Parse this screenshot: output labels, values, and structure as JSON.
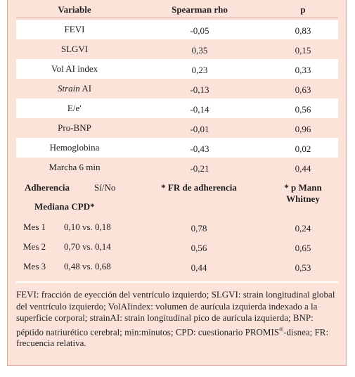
{
  "table": {
    "header": [
      "Variable",
      "Spearman rho",
      "p"
    ],
    "rows": [
      {
        "variable": "FEVI",
        "rho": "-0,05",
        "p": "0,83"
      },
      {
        "variable": "SLGVI",
        "rho": "0,35",
        "p": "0,15"
      },
      {
        "variable": "Vol AI index",
        "rho": "0,23",
        "p": "0,33"
      },
      {
        "variable_italic": "Strain",
        "variable": "AI",
        "rho": "-0,13",
        "p": "0,63"
      },
      {
        "variable": "E/e′",
        "rho": "-0,14",
        "p": "0,56"
      },
      {
        "variable": "Pro-BNP",
        "rho": "-0,01",
        "p": "0,96"
      },
      {
        "variable": "Hemoglobina",
        "rho": "-0,43",
        "p": "0,02"
      },
      {
        "variable": "Marcha 6 min",
        "rho": "-0,21",
        "p": "0,44"
      }
    ]
  },
  "adherence": {
    "header": {
      "label": "Adherencia",
      "sub": "Sí/No",
      "fr": "* FR de adherencia",
      "p": "* p Mann Whitney",
      "median": "Mediana CPD*"
    },
    "rows": [
      {
        "month": "Mes 1",
        "median": "0,10 vs. 0,18",
        "fr": "0,78",
        "p": "0,24"
      },
      {
        "month": "Mes 2",
        "median": "0,70 vs. 0,14",
        "fr": "0,56",
        "p": "0,65"
      },
      {
        "month": "Mes 3",
        "median": "0,48 vs. 0,68",
        "fr": "0,44",
        "p": "0,53"
      }
    ]
  },
  "footnote": [
    "FEVI: fracción de eyección del ventrículo izquierdo; SLGVI: strain longitudinal global del ventrículo izquierdo; VolAIindex: volumen de aurícula izquierda indexado a la superficie corporal; strainAI: strain longitudinal pico de aurícula izquierda; BNP: péptido natriurético cerebral; min:minutos; CPD: cuestionario PROMIS",
    "®",
    "-disnea; FR: frecuencia relativa."
  ]
}
